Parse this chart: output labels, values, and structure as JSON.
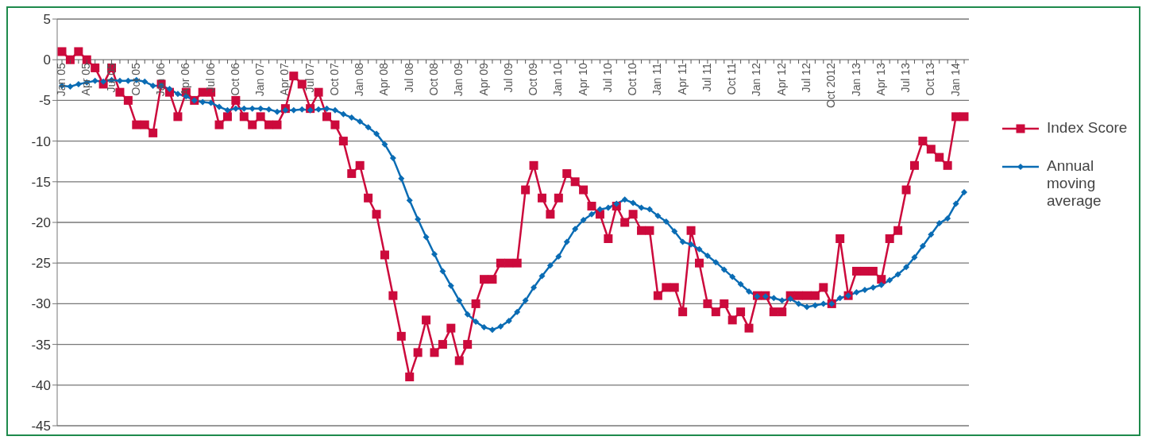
{
  "chart_data": {
    "type": "line",
    "categories": [
      "Jan 05",
      null,
      null,
      "Apr 05",
      null,
      null,
      "Jul 05",
      null,
      null,
      "Oct 05",
      null,
      null,
      "Jan 06",
      null,
      null,
      "Apr 06",
      null,
      null,
      "Jul 06",
      null,
      null,
      "Oct 06",
      null,
      null,
      "Jan 07",
      null,
      null,
      "Apr 07",
      null,
      null,
      "Jul 07",
      null,
      null,
      "Oct 07",
      null,
      null,
      "Jan 08",
      null,
      null,
      "Apr 08",
      null,
      null,
      "Jul 08",
      null,
      null,
      "Oct 08",
      null,
      null,
      "Jan 09",
      null,
      null,
      "Apr 09",
      null,
      null,
      "Jul 09",
      null,
      null,
      "Oct 09",
      null,
      null,
      "Jan 10",
      null,
      null,
      "Apr 10",
      null,
      null,
      "Jul 10",
      null,
      null,
      "Oct 10",
      null,
      null,
      "Jan 11",
      null,
      null,
      "Apr 11",
      null,
      null,
      "Jul 11",
      null,
      null,
      "Oct 11",
      null,
      null,
      "Jan 12",
      null,
      null,
      "Apr 12",
      null,
      null,
      "Jul 12",
      null,
      null,
      "Oct 2012",
      null,
      null,
      "Jan 13",
      null,
      null,
      "Apr 13",
      null,
      null,
      "Jul 13",
      null,
      null,
      "Oct 13",
      null,
      null,
      "Jan 14",
      null
    ],
    "series": [
      {
        "name": "Index Score",
        "color": "#cc0a3c",
        "marker": "square",
        "values": [
          1,
          0,
          1,
          0,
          -1,
          -3,
          -1,
          -4,
          -5,
          -8,
          -8,
          -9,
          -3,
          -4,
          -7,
          -4,
          -5,
          -4,
          -4,
          -8,
          -7,
          -5,
          -7,
          -8,
          -7,
          -8,
          -8,
          -6,
          -2,
          -3,
          -6,
          -4,
          -7,
          -8,
          -10,
          -14,
          -13,
          -17,
          -19,
          -24,
          -29,
          -34,
          -39,
          -36,
          -32,
          -36,
          -35,
          -33,
          -37,
          -35,
          -30,
          -27,
          -27,
          -25,
          -25,
          -25,
          -16,
          -13,
          -17,
          -19,
          -17,
          -14,
          -15,
          -16,
          -18,
          -19,
          -22,
          -18,
          -20,
          -19,
          -21,
          -21,
          -29,
          -28,
          -28,
          -31,
          -21,
          -25,
          -30,
          -31,
          -30,
          -32,
          -31,
          -33,
          -29,
          -29,
          -31,
          -31,
          -29,
          -29,
          -29,
          -29,
          -28,
          -30,
          -22,
          -29,
          -26,
          -26,
          -26,
          -27,
          -22,
          -21,
          -16,
          -13,
          -10,
          -11,
          -12,
          -13,
          -7,
          -7
        ]
      },
      {
        "name": "Annual moving average",
        "color": "#0a6cb4",
        "marker": "diamond",
        "values": [
          -3.2,
          -3.3,
          -3.0,
          -2.8,
          -2.6,
          -2.7,
          -2.5,
          -2.6,
          -2.6,
          -2.5,
          -2.7,
          -3.2,
          -3.2,
          -3.6,
          -4.2,
          -4.5,
          -5.0,
          -5.2,
          -5.3,
          -5.8,
          -6.2,
          -6.0,
          -6.0,
          -6.0,
          -6.0,
          -6.1,
          -6.4,
          -6.2,
          -6.2,
          -6.1,
          -6.2,
          -6.1,
          -6.0,
          -6.2,
          -6.7,
          -7.1,
          -7.6,
          -8.3,
          -9.1,
          -10.4,
          -12.1,
          -14.6,
          -17.3,
          -19.6,
          -21.8,
          -23.9,
          -26.0,
          -27.8,
          -29.6,
          -31.3,
          -32.2,
          -32.9,
          -33.2,
          -32.8,
          -32.1,
          -31.0,
          -29.6,
          -28.0,
          -26.6,
          -25.3,
          -24.2,
          -22.4,
          -20.8,
          -19.7,
          -19.0,
          -18.4,
          -18.2,
          -17.7,
          -17.2,
          -17.6,
          -18.2,
          -18.4,
          -19.2,
          -19.9,
          -21.1,
          -22.4,
          -22.7,
          -23.3,
          -24.1,
          -24.9,
          -25.8,
          -26.7,
          -27.6,
          -28.5,
          -29.1,
          -29.1,
          -29.3,
          -29.6,
          -29.4,
          -30.0,
          -30.4,
          -30.2,
          -30.0,
          -30.0,
          -29.3,
          -29.0,
          -28.6,
          -28.3,
          -28.0,
          -27.7,
          -27.1,
          -26.4,
          -25.5,
          -24.3,
          -22.9,
          -21.5,
          -20.1,
          -19.5,
          -17.7,
          -16.3
        ]
      }
    ],
    "ylim": [
      -45,
      5
    ],
    "yticks": [
      -45,
      -40,
      -35,
      -30,
      -25,
      -20,
      -15,
      -10,
      -5,
      0,
      5
    ],
    "grid": "y",
    "legend": "right",
    "line_style": "solid"
  }
}
